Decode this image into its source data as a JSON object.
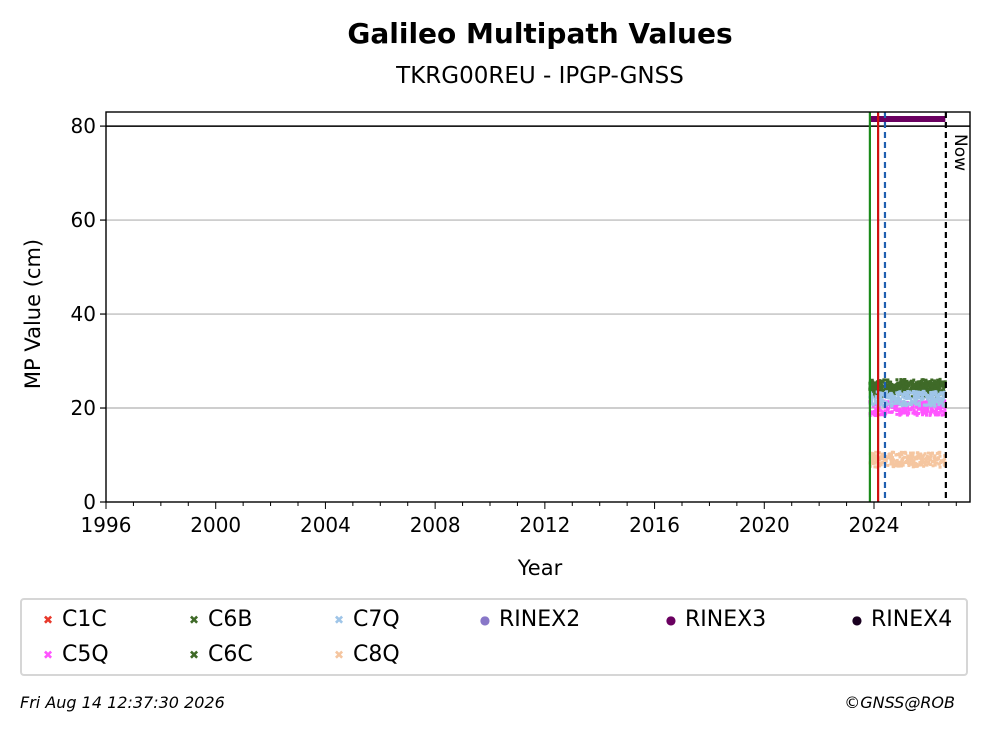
{
  "chart_data": {
    "type": "scatter",
    "title": "Galileo Multipath Values",
    "subtitle": "TKRG00REU - IPGP-GNSS",
    "xlabel": "Year",
    "ylabel": "MP Value (cm)",
    "xlim": [
      1996,
      2027.5
    ],
    "ylim": [
      0,
      83
    ],
    "x_ticks": [
      1996,
      2000,
      2004,
      2008,
      2012,
      2016,
      2020,
      2024
    ],
    "y_ticks": [
      0,
      20,
      40,
      60,
      80
    ],
    "grid": "horizontal",
    "legend_position": "bottom",
    "series": [
      {
        "name": "C1C",
        "color": "#e8392b",
        "marker": "x",
        "x_range": [
          2023.85,
          2026.6
        ],
        "y_mean": null
      },
      {
        "name": "C5Q",
        "color": "#ff55ff",
        "marker": "x",
        "x_range": [
          2023.85,
          2026.6
        ],
        "y_mean": 20
      },
      {
        "name": "C6B",
        "color": "#3f6a28",
        "marker": "x",
        "x_range": [
          2023.85,
          2026.6
        ],
        "y_mean": 24.5
      },
      {
        "name": "C6C",
        "color": "#3f6a28",
        "marker": "x",
        "x_range": [
          2023.85,
          2026.6
        ],
        "y_mean": 24
      },
      {
        "name": "C7Q",
        "color": "#9fc5e8",
        "marker": "x",
        "x_range": [
          2023.85,
          2026.6
        ],
        "y_mean": 22
      },
      {
        "name": "C8Q",
        "color": "#f5c6a0",
        "marker": "x",
        "x_range": [
          2023.85,
          2026.6
        ],
        "y_mean": 9
      },
      {
        "name": "RINEX2",
        "color": "#8877c8",
        "marker": "o"
      },
      {
        "name": "RINEX3",
        "color": "#6a0060",
        "marker": "o",
        "x_range": [
          2023.85,
          2026.6
        ],
        "y_value": 81.5
      },
      {
        "name": "RINEX4",
        "color": "#1a0020",
        "marker": "o"
      }
    ],
    "vertical_lines": [
      {
        "x": 2023.85,
        "color": "#1a8a1a",
        "style": "solid"
      },
      {
        "x": 2024.15,
        "color": "#d01010",
        "style": "solid"
      },
      {
        "x": 2024.4,
        "color": "#1f5fb0",
        "style": "dashed"
      },
      {
        "x": 2026.62,
        "color": "#000000",
        "style": "dashed",
        "label": "Now"
      }
    ],
    "hline": {
      "y": 80,
      "color": "#000000"
    }
  },
  "legend": {
    "items": [
      {
        "label": "C1C",
        "color": "#e8392b",
        "glyph": "✖"
      },
      {
        "label": "C6B",
        "color": "#3f6a28",
        "glyph": "✖"
      },
      {
        "label": "C7Q",
        "color": "#9fc5e8",
        "glyph": "✖"
      },
      {
        "label": "RINEX2",
        "color": "#8877c8",
        "glyph": "●"
      },
      {
        "label": "RINEX3",
        "color": "#6a0060",
        "glyph": "●"
      },
      {
        "label": "RINEX4",
        "color": "#1a0020",
        "glyph": "●"
      },
      {
        "label": "C5Q",
        "color": "#ff55ff",
        "glyph": "✖"
      },
      {
        "label": "C6C",
        "color": "#3f6a28",
        "glyph": "✖"
      },
      {
        "label": "C8Q",
        "color": "#f5c6a0",
        "glyph": "✖"
      }
    ]
  },
  "footer": {
    "timestamp": "Fri Aug 14 12:37:30 2026",
    "credit": "©GNSS@ROB"
  }
}
